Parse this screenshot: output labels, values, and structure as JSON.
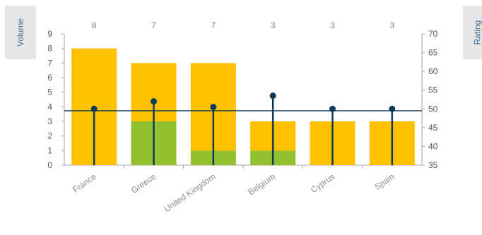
{
  "buttons": {
    "left_label": "Volume",
    "right_label": "Rating"
  },
  "chart_data": {
    "type": "bar",
    "stacked": true,
    "categories": [
      "France",
      "Greece",
      "United Kingdom",
      "Belgium",
      "Cyprus",
      "Spain"
    ],
    "series": [
      {
        "values": [
          0,
          3,
          1,
          1,
          0,
          0
        ],
        "color": "#93c02f"
      },
      {
        "values": [
          8,
          4,
          6,
          2,
          3,
          3
        ],
        "color": "#ffc000"
      }
    ],
    "totals": [
      8,
      7,
      7,
      3,
      3,
      3
    ],
    "totals_text": [
      "8",
      "7",
      "7",
      "3",
      "3",
      "3"
    ],
    "rating": {
      "values": [
        50,
        52,
        50.5,
        53.5,
        50,
        50
      ],
      "color": "#0e3a5a",
      "reference": 49.5
    },
    "y_left": {
      "min": 0,
      "max": 9,
      "ticks": [
        "0",
        "1",
        "2",
        "3",
        "4",
        "5",
        "6",
        "7",
        "8",
        "9"
      ]
    },
    "y_right": {
      "min": 35,
      "max": 70,
      "ticks": [
        "35",
        "40",
        "45",
        "50",
        "55",
        "60",
        "65",
        "70"
      ]
    },
    "grid": false,
    "legend": "none"
  }
}
